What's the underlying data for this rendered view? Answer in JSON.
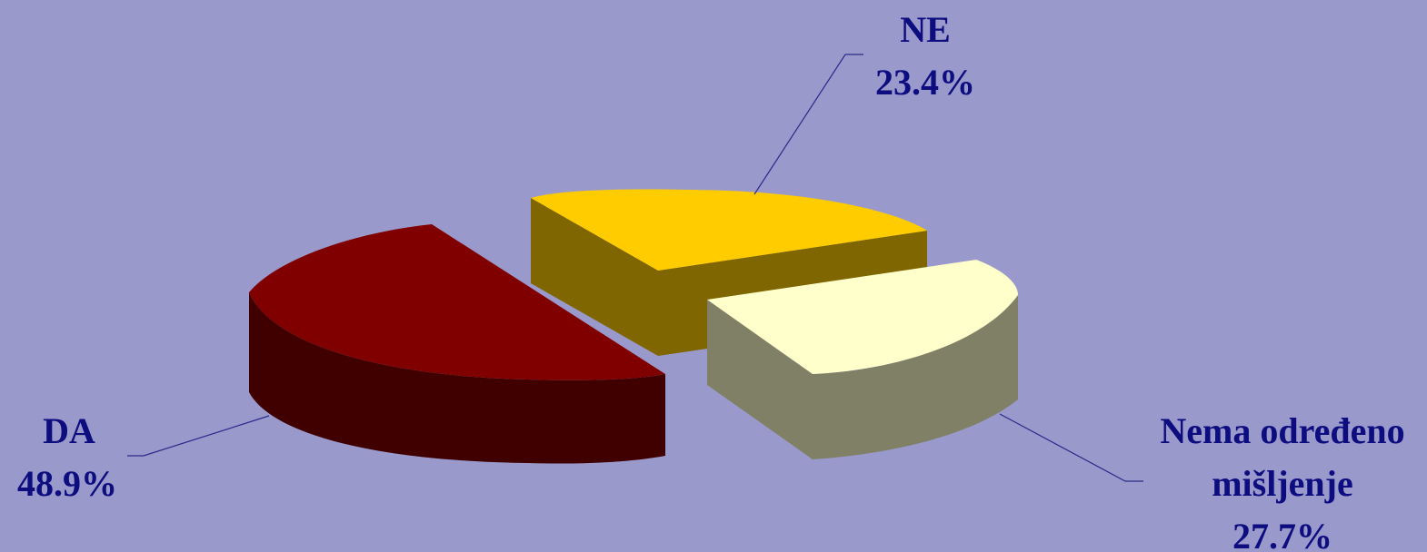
{
  "chart_data": {
    "type": "pie",
    "title": "",
    "slices": [
      {
        "label": "DA",
        "percent": 48.9,
        "value_label": "48.9%",
        "color": "#800000",
        "side_color": "#400000"
      },
      {
        "label": "NE",
        "percent": 23.4,
        "value_label": "23.4%",
        "color": "#ffcc00",
        "side_color": "#806600"
      },
      {
        "label_lines": [
          "Nema određeno",
          "mišljenje"
        ],
        "percent": 27.7,
        "value_label": "27.7%",
        "color": "#ffffcc",
        "side_color": "#808066"
      }
    ],
    "legend": "none",
    "style": "3d-exploded"
  },
  "colors": {
    "background": "#9999cc",
    "label_text": "#0d0d80"
  }
}
